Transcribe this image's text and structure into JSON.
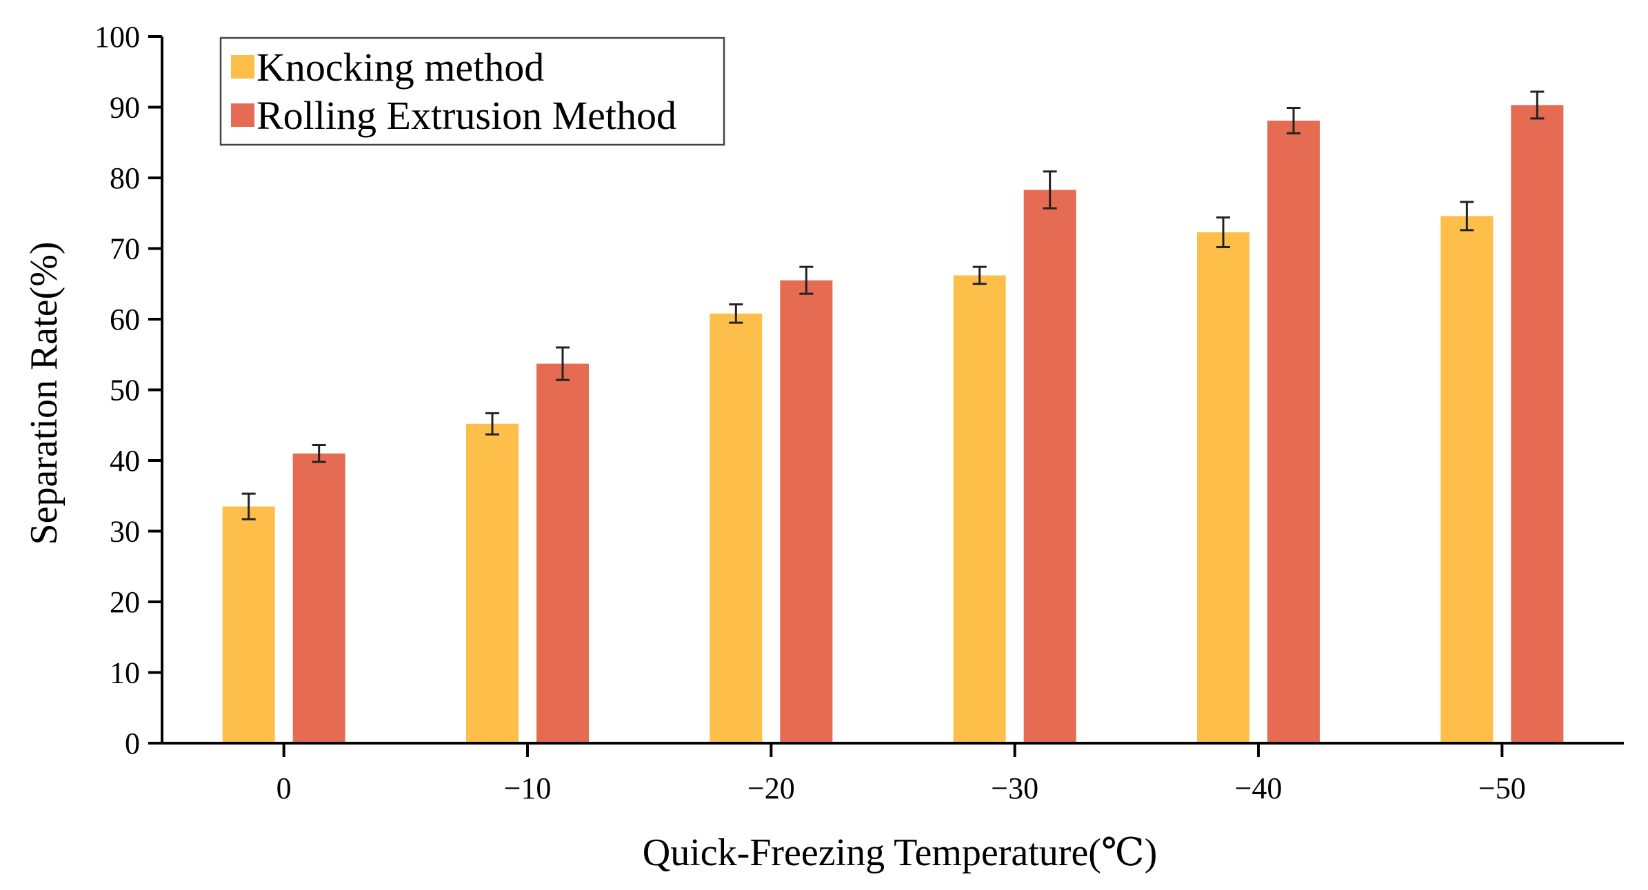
{
  "chart_data": {
    "type": "bar",
    "title": "",
    "xlabel": "Quick-Freezing Temperature(℃)",
    "ylabel": "Separation Rate(%)",
    "ylim": [
      0,
      100
    ],
    "yticks": [
      "0",
      "10",
      "20",
      "30",
      "40",
      "50",
      "60",
      "70",
      "80",
      "90",
      "100"
    ],
    "categories": [
      "0",
      "−10",
      "−20",
      "−30",
      "−40",
      "−50"
    ],
    "series": [
      {
        "name": "Knocking method",
        "color": "#FDBF4A",
        "values": [
          33.5,
          45.2,
          60.8,
          66.2,
          72.3,
          74.6
        ],
        "errors": [
          1.8,
          1.5,
          1.3,
          1.2,
          2.1,
          2.0
        ]
      },
      {
        "name": "Rolling Extrusion Method",
        "color": "#E56C52",
        "values": [
          41.0,
          53.7,
          65.5,
          78.3,
          88.1,
          90.3
        ],
        "errors": [
          1.2,
          2.3,
          1.9,
          2.6,
          1.8,
          1.9
        ]
      }
    ],
    "legend_position": "top-left",
    "grid": false
  }
}
